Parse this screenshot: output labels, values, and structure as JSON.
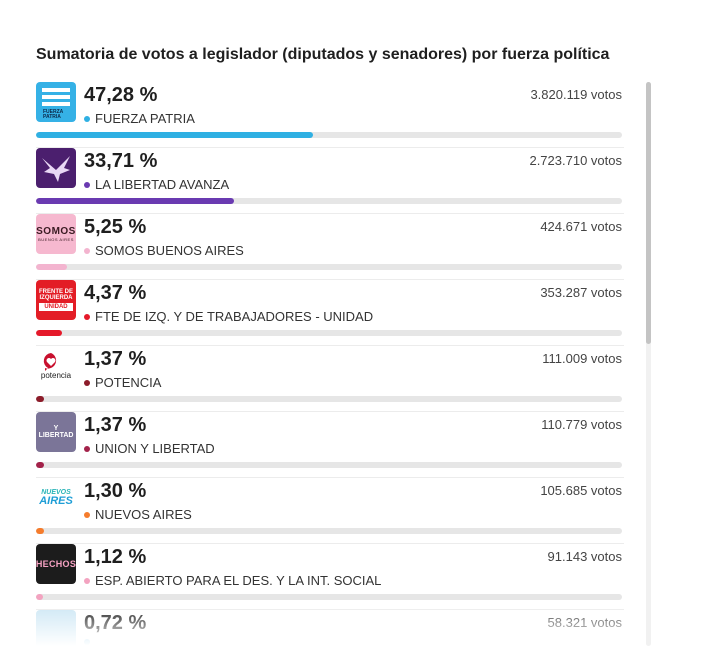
{
  "title": "Sumatoria de votos a legislador (diputados y senadores) por fuerza política",
  "results": [
    {
      "percent": "47,28 %",
      "share": 47.28,
      "name": "FUERZA PATRIA",
      "votes": "3.820.119 votos",
      "color": "#2fb0e3",
      "logo_color": "#35b1e6",
      "logo_text": "FUERZA\nPATRIA",
      "icon": "fuerza-patria-flag-icon"
    },
    {
      "percent": "33,71 %",
      "share": 33.71,
      "name": "LA LIBERTAD AVANZA",
      "votes": "2.723.710 votos",
      "color": "#6a3ab1",
      "logo_color": "#4b1f6e",
      "logo_text": "",
      "icon": "eagle-icon"
    },
    {
      "percent": "5,25 %",
      "share": 5.25,
      "name": "SOMOS BUENOS AIRES",
      "votes": "424.671 votos",
      "color": "#f3b4cf",
      "logo_color": "#f6b8cf",
      "logo_text": "SOMOS",
      "icon": "somos-logo-icon"
    },
    {
      "percent": "4,37 %",
      "share": 4.37,
      "name": "FTE DE IZQ. Y DE TRABAJADORES - UNIDAD",
      "votes": "353.287 votos",
      "color": "#e5192a",
      "logo_color": "#e31d26",
      "logo_text": "FRENTE DE\nIZQUIERDA\nUNIDAD",
      "icon": "frente-izquierda-logo-icon"
    },
    {
      "percent": "1,37 %",
      "share": 1.37,
      "name": "POTENCIA",
      "votes": "111.009 votos",
      "color": "#8c1c2a",
      "logo_color": "#ffffff",
      "logo_text": "potencia",
      "icon": "potencia-heart-icon"
    },
    {
      "percent": "1,37 %",
      "share": 1.37,
      "name": "UNION Y LIBERTAD",
      "votes": "110.779 votos",
      "color": "#a3224a",
      "logo_color": "#7b7598",
      "logo_text": "Y LIBERTAD",
      "icon": "union-libertad-logo-icon"
    },
    {
      "percent": "1,30 %",
      "share": 1.3,
      "name": "NUEVOS AIRES",
      "votes": "105.685 votos",
      "color": "#f57c2c",
      "logo_color": "#ffffff",
      "logo_text": "NUEVOS\nAIRES",
      "icon": "nuevos-aires-logo-icon"
    },
    {
      "percent": "1,12 %",
      "share": 1.12,
      "name": "ESP. ABIERTO PARA EL DES. Y LA INT. SOCIAL",
      "votes": "91.143 votos",
      "color": "#f3a3c0",
      "logo_color": "#1c1c1c",
      "logo_text": "HECHOS",
      "icon": "hechos-logo-icon"
    },
    {
      "percent": "0,72 %",
      "share": 0.72,
      "name": "",
      "votes": "58.321 votos",
      "color": "#9ad0ea",
      "logo_color": "#cfe8f5",
      "logo_text": "",
      "icon": "party-logo-icon"
    }
  ]
}
